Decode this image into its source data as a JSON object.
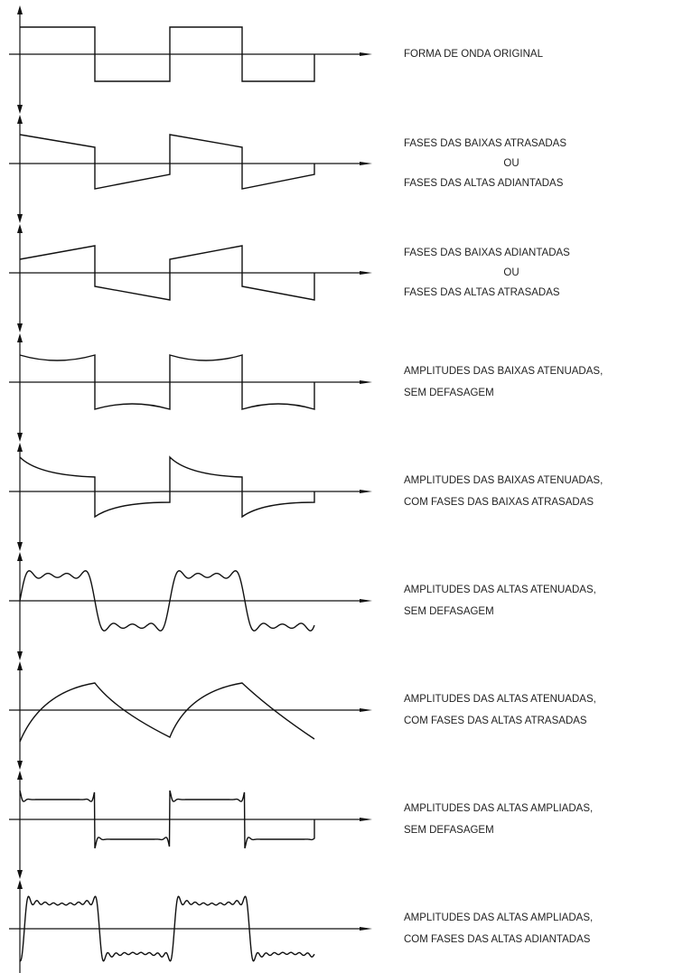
{
  "rows": [
    {
      "lines": [
        "FORMA DE ONDA ORIGINAL"
      ]
    },
    {
      "lines": [
        "FASES DAS BAIXAS ATRASADAS",
        "OU",
        "FASES DAS ALTAS ADIANTADAS"
      ]
    },
    {
      "lines": [
        "FASES DAS BAIXAS ADIANTADAS",
        "OU",
        "FASES DAS ALTAS ATRASADAS"
      ]
    },
    {
      "lines": [
        "AMPLITUDES DAS BAIXAS ATENUADAS,",
        "SEM DEFASAGEM"
      ]
    },
    {
      "lines": [
        "AMPLITUDES DAS BAIXAS ATENUADAS,",
        "COM FASES DAS BAIXAS ATRASADAS"
      ]
    },
    {
      "lines": [
        "AMPLITUDES DAS ALTAS ATENUADAS,",
        "SEM DEFASAGEM"
      ]
    },
    {
      "lines": [
        "AMPLITUDES DAS ALTAS ATENUADAS,",
        "COM FASES DAS ALTAS ATRASADAS"
      ]
    },
    {
      "lines": [
        "AMPLITUDES DAS ALTAS AMPLIADAS,",
        "SEM DEFASAGEM"
      ]
    },
    {
      "lines": [
        "AMPLITUDES DAS ALTAS AMPLIADAS,",
        "COM FASES DAS ALTAS ADIANTADAS"
      ]
    }
  ]
}
